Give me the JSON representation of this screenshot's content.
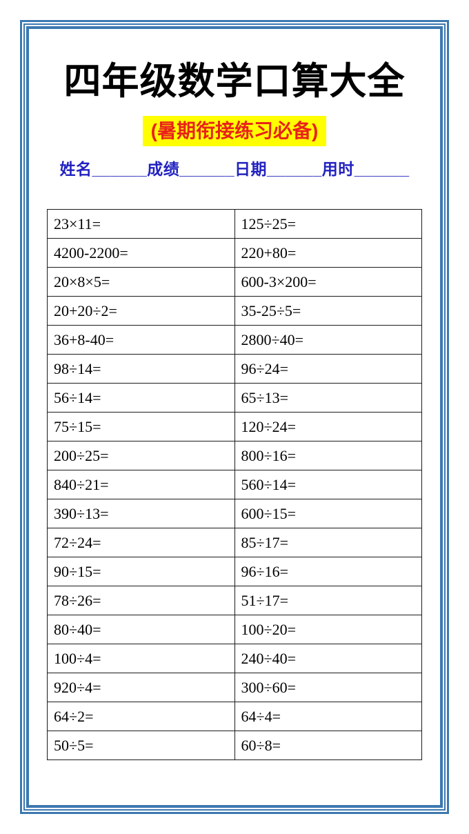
{
  "page": {
    "title": "四年级数学口算大全",
    "subtitle": "(暑期衔接练习必备)",
    "info_line": "姓名______成绩______日期______用时______"
  },
  "colors": {
    "frame_blue": "#3c78b0",
    "subtitle_text": "#e8221a",
    "subtitle_bg": "#ffff00",
    "info_text": "#2222c0",
    "table_border": "#1a1a1a",
    "title_text": "#000000"
  },
  "table": {
    "columns": 2,
    "rows": [
      [
        "23×11=",
        "125÷25="
      ],
      [
        "4200-2200=",
        "220+80="
      ],
      [
        "20×8×5=",
        "600-3×200="
      ],
      [
        "20+20÷2=",
        "35-25÷5="
      ],
      [
        "36+8-40=",
        "2800÷40="
      ],
      [
        "98÷14=",
        "96÷24="
      ],
      [
        "56÷14=",
        "65÷13="
      ],
      [
        "75÷15=",
        "120÷24="
      ],
      [
        "200÷25=",
        "800÷16="
      ],
      [
        "840÷21=",
        "560÷14="
      ],
      [
        "390÷13=",
        "600÷15="
      ],
      [
        "72÷24=",
        "85÷17="
      ],
      [
        "90÷15=",
        "96÷16="
      ],
      [
        "78÷26=",
        "51÷17="
      ],
      [
        "80÷40=",
        "100÷20="
      ],
      [
        "100÷4=",
        "240÷40="
      ],
      [
        "920÷4=",
        "300÷60="
      ],
      [
        "64÷2=",
        "64÷4="
      ],
      [
        "50÷5=",
        "60÷8="
      ]
    ]
  }
}
